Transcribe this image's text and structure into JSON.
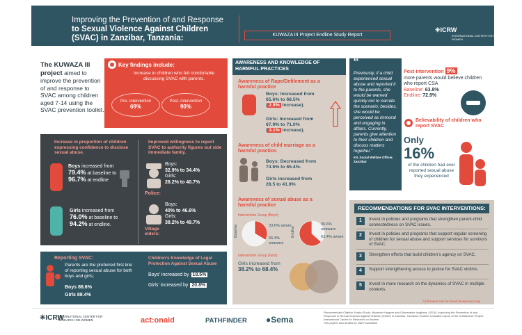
{
  "header": {
    "title_line1": "Improving the Prevention of and Response",
    "title_line2": "to Sexual Violence Against Children",
    "title_line3": "(SVAC) in Zanzibar, Tanzania:",
    "subtitle": "KUWAZA III Project Endline Study Report",
    "org_name": "ICRW",
    "org_full": "INTERNATIONAL CENTER FOR RESEARCH ON WOMEN"
  },
  "intro": {
    "bold": "The KUWAZA III project",
    "text": "aimed to improve the prevention of and response to SVAC among children aged 7-14 using the SVAC prevention toolkit."
  },
  "key_findings": {
    "title": "Key findings include:",
    "text": "Increase in children who felt comfortable discussing SVAC with parents.",
    "pre_label": "Pre- intervention",
    "pre_value": "69%",
    "post_label": "Post- intervention",
    "post_value": "90%"
  },
  "confidence": {
    "heading": "Increase in proportion of children expressing confidence to disclose sexual abuse.",
    "boys_a": "Boys",
    "boys_b": "increased from",
    "boys_from": "79.4%",
    "boys_c": "at baseline to",
    "boys_to": "96.7%",
    "boys_d": "at endline",
    "girls_a": "Girls",
    "girls_b": "increased from",
    "girls_from": "76.0%",
    "girls_c": "at baseline to",
    "girls_to": "94.2%",
    "girls_d": "at endline."
  },
  "willingness": {
    "heading": "Improved willingness to report SVAC to authority figures out side immediate family.",
    "police_label": "Police:",
    "police_boys_label": "Boys:",
    "police_boys": "32.9% to 34.4%",
    "police_girls_label": "Girls:",
    "police_girls": "28.2% to 40.7%",
    "village_label": "Village elders:",
    "village_boys_label": "Boys:",
    "village_boys": "40% to 46.6%",
    "village_girls_label": "Girls:",
    "village_girls": "38.2% to 49.7%"
  },
  "reporting": {
    "heading": "Reporting SVAC:",
    "text": "Parents are the preferred first line of reporting sexual abuse for both boys and girls;",
    "boys_label": "Boys",
    "boys": "88.6%",
    "girls_label": "Girls",
    "girls": "88.4%"
  },
  "legal": {
    "heading": "Children's Knowledge of Legal Protection Against Sexual Abuse",
    "boys_label": "Boys' increased by",
    "boys": "18.5%",
    "girls_label": "Girls' increased by",
    "girls": "20.8%"
  },
  "awareness": {
    "heading": "AWARENESS AND KNOWLEDGE OF HARMFUL PRACTICES",
    "rape_heading": "Awareness of Rape/Defilement as a harmful practice",
    "rape_boys_a": "Boys: Increased from",
    "rape_boys_b": "65.6% to 68.5%",
    "rape_boys_inc": "2.9%",
    "rape_boys_c": "increase).",
    "rape_girls_a": "Girls: Increased from",
    "rape_girls_b": "67.9% to 71.0%",
    "rape_girls_inc": "3.1%",
    "rape_girls_c": "increase).",
    "marriage_heading": "Awareness of child marriage as a harmful practice.",
    "marriage_boys_a": "Boys: Decreased from",
    "marriage_boys_b": "74.6% to 65.4%.",
    "marriage_girls_a": "Girls increased from",
    "marriage_girls_b": "28.5 to 41.9%",
    "sexual_heading": "Awareness of sexual abuse as a harmful practice",
    "group_boys": "Intervention Group (Boys):",
    "baseline_label": "Baseline",
    "endline_label": "Endline",
    "base_aware": "33.6% aware",
    "base_unaware": "66.4% unaware",
    "end_unaware": "36.6% unaware",
    "end_aware": "63.4% aware",
    "group_girls": "Intervention Group (Girls):",
    "girls_a": "Girls increased from",
    "girls_b": "38.2% to 68.4%"
  },
  "chart_data": [
    {
      "type": "pie",
      "title": "Baseline",
      "categories": [
        "aware",
        "unaware"
      ],
      "values": [
        33.6,
        66.4
      ]
    },
    {
      "type": "pie",
      "title": "Endline",
      "categories": [
        "unaware",
        "aware"
      ],
      "values": [
        36.6,
        63.4
      ]
    }
  ],
  "quote": {
    "mark": "“",
    "text": "Previously, if a child experienced sexual abuse and reported it to the parents, she would be warned quickly not to narrate the scenario; besides, she would be perceived as immoral and engaging in affairs. Currently, parents give attention to their children and discuss matters together.\"",
    "attribution": "KII, Social Welfare Officer, Zanzibar"
  },
  "post_intervention": {
    "label": "Post-intervention",
    "value": "9%",
    "text": "more parents would believe children who report CSA",
    "baseline_label": "Baseline:",
    "baseline": "63.8%",
    "endline_label": "Endline:",
    "endline": "72.9%"
  },
  "believability": {
    "heading": "Believability of children who report SVAC",
    "only": "Only",
    "value": "16%",
    "text": "of the children had ever reported sexual abuse they experienced"
  },
  "recommendations": {
    "heading": "RECOMMENDATIONS FOR SVAC INTERVENTIONS:",
    "items": [
      {
        "n": "1",
        "text": "Invest in policies and programs that strengthen parent-child connectedness on SVAC issues."
      },
      {
        "n": "2",
        "text": "Invest in policies and programs that support regular screening of children for sexual abuse and support services for survivors of SVAC."
      },
      {
        "n": "3",
        "text": "Strengthen efforts that build children's agency on SVAC."
      },
      {
        "n": "4",
        "text": "Support strengthening access to justice for SVAC victims."
      },
      {
        "n": "5",
        "text": "Invest in more research on the dynamics of SVAC in multiple contexts."
      }
    ],
    "footer": "A full report can be found at www.icrw.org"
  },
  "footer": {
    "icrw": "ICRW",
    "icrw_full": "INTERNATIONAL CENTER FOR RESEARCH ON WOMEN",
    "actionaid": "act:onaid",
    "pathfinder": "PATHFINDER",
    "sema": "Sema",
    "citation": "Recommended Citation: Kiraho Suuhi, Maureen Kangere and Chimaranke Izugbara. (2024). Improving the Prevention of and Response to Sexual Violence Against Children (SVAC) in Zanzibar, Tanzania: Endline evaluation report of the KUWAZA III Project. International Centre for Research on Women",
    "funded": "This project was funded by Oak Foundation"
  }
}
